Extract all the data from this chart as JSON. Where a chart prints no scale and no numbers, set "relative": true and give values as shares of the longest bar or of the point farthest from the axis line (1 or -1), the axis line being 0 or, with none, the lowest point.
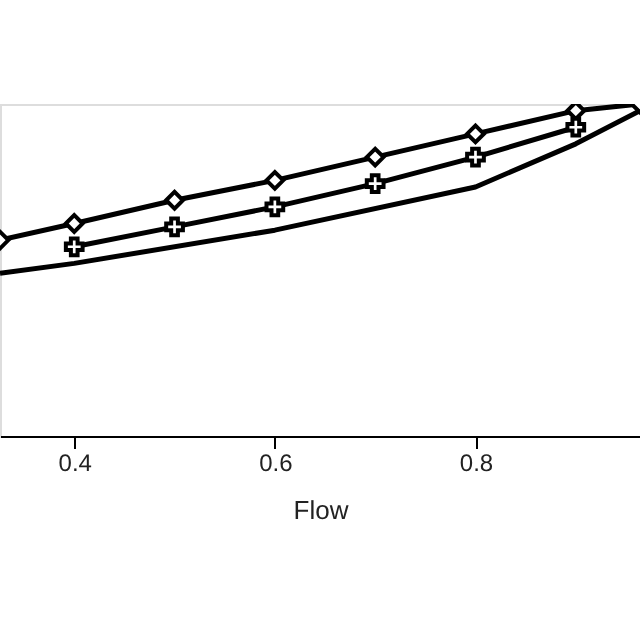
{
  "chart_data": {
    "type": "line",
    "xlabel": "Flow",
    "relative": true,
    "xlim": [
      0.326,
      0.964
    ],
    "xticks": [
      0.4,
      0.6,
      0.8
    ],
    "grid": false,
    "line_style": "solid",
    "series": [
      {
        "color": "#000000",
        "marker": "diamond",
        "x": [
          0.326,
          0.4,
          0.5,
          0.6,
          0.7,
          0.8,
          0.9,
          0.964
        ],
        "values": [
          0.59,
          0.64,
          0.71,
          0.77,
          0.84,
          0.91,
          0.98,
          1.0
        ]
      },
      {
        "color": "#000000",
        "marker": "cross",
        "x": [
          0.4,
          0.5,
          0.6,
          0.7,
          0.8,
          0.9
        ],
        "values": [
          0.57,
          0.63,
          0.69,
          0.76,
          0.84,
          0.93
        ]
      },
      {
        "color": "#000000",
        "marker": "none",
        "x": [
          0.326,
          0.4,
          0.6,
          0.8,
          0.9,
          0.964
        ],
        "values": [
          0.49,
          0.52,
          0.62,
          0.75,
          0.88,
          0.98
        ]
      }
    ]
  }
}
